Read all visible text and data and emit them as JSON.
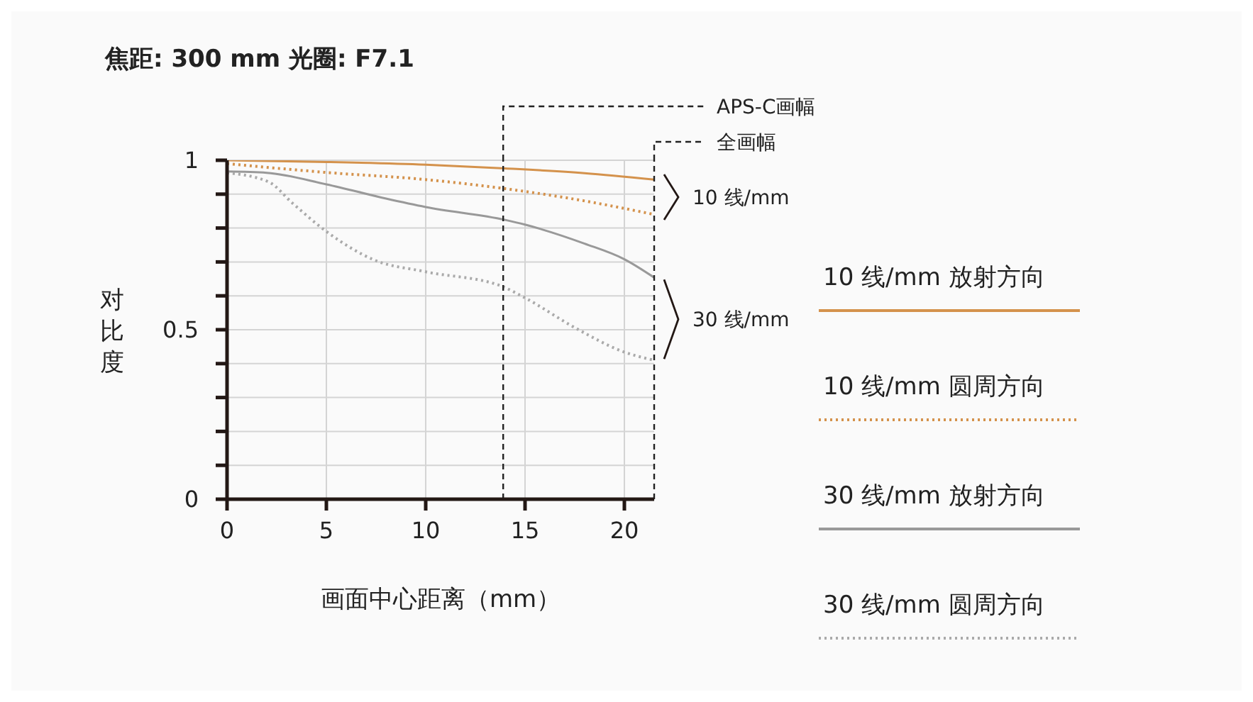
{
  "chart_data": {
    "type": "line",
    "title": "焦距: 300 mm  光圈: F7.1",
    "xlabel": "画面中心距离（mm）",
    "ylabel": "对比度",
    "xlim": [
      0,
      21.5
    ],
    "xticks": [
      0,
      5,
      10,
      15,
      20
    ],
    "ylim": [
      0,
      1
    ],
    "yticks": [
      0,
      {
        "value": 0.1,
        "label": null
      },
      {
        "value": 0.2,
        "label": null
      },
      {
        "value": 0.3,
        "label": null
      },
      {
        "value": 0.4,
        "label": null
      },
      0.5,
      {
        "value": 0.6,
        "label": null
      },
      {
        "value": 0.7,
        "label": null
      },
      {
        "value": 0.8,
        "label": null
      },
      {
        "value": 0.9,
        "label": null
      },
      1
    ],
    "grid": true,
    "legend": "right",
    "marker": "none",
    "series": [
      {
        "name": "10 线/mm 放射方向",
        "color": "#d4924c",
        "line_style": "solid",
        "x": [
          0,
          5,
          10,
          14,
          18,
          21.5
        ],
        "values": [
          1.0,
          0.995,
          0.987,
          0.976,
          0.962,
          0.943
        ]
      },
      {
        "name": "10 线/mm 圆周方向",
        "color": "#d4924c",
        "line_style": "dotted",
        "x": [
          0,
          5,
          10,
          15,
          18,
          21.5
        ],
        "values": [
          0.99,
          0.964,
          0.943,
          0.908,
          0.88,
          0.84
        ]
      },
      {
        "name": "30 线/mm 放射方向",
        "color": "#999999",
        "line_style": "solid",
        "x": [
          0,
          2,
          5,
          8,
          10,
          14,
          15,
          18,
          20,
          21.5
        ],
        "values": [
          0.967,
          0.963,
          0.929,
          0.887,
          0.862,
          0.824,
          0.81,
          0.754,
          0.708,
          0.654
        ]
      },
      {
        "name": "30 线/mm 圆周方向",
        "color": "#aaaaaa",
        "line_style": "dotted",
        "x": [
          0,
          2.1,
          3.3,
          5,
          7.4,
          10,
          13.8,
          15,
          17.6,
          20,
          21.5
        ],
        "values": [
          0.963,
          0.936,
          0.873,
          0.79,
          0.706,
          0.671,
          0.629,
          0.594,
          0.503,
          0.434,
          0.41
        ]
      }
    ],
    "ref_lines": [
      {
        "axis": "x",
        "value": 13.9,
        "label": "APS-C画幅",
        "color": "#222222",
        "line_style": "dashed"
      },
      {
        "axis": "x",
        "value": 21.5,
        "label": "全画幅",
        "color": "#222222",
        "line_style": "dashed"
      }
    ],
    "annotations": [
      {
        "text": "10 线/mm",
        "x": 21.5,
        "y": 0.891
      },
      {
        "text": "30 线/mm",
        "x": 21.5,
        "y": 0.531
      }
    ]
  }
}
